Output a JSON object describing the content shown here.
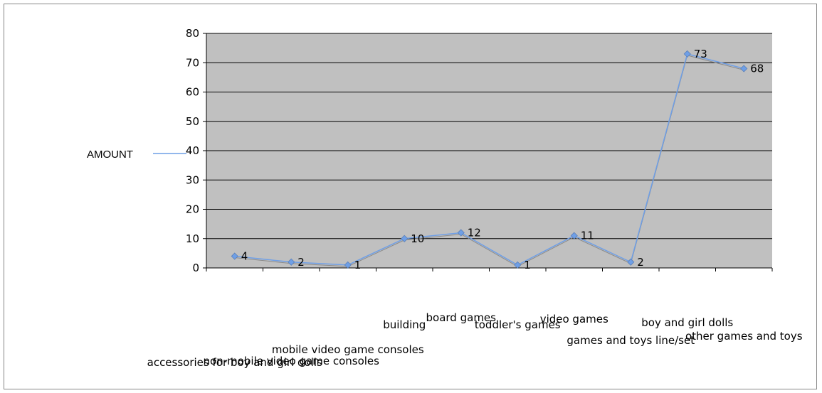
{
  "chart_data": {
    "type": "line",
    "title": "",
    "xlabel": "",
    "ylabel": "",
    "categories": [
      "accessories for boy and girl dolls",
      "non-mobile video game consoles",
      "mobile video game consoles",
      "building",
      "board games",
      "toddler's games",
      "video games",
      "games and toys line/set",
      "boy and girl dolls",
      "other games and toys"
    ],
    "series": [
      {
        "name": "AMOUNT",
        "values": [
          4,
          2,
          1,
          10,
          12,
          1,
          11,
          2,
          73,
          68
        ],
        "color": "#6f9fe6"
      }
    ],
    "data_labels": [
      "4",
      "2",
      "1",
      "10",
      "12",
      "1",
      "11",
      "2",
      "73",
      "68"
    ],
    "ylim": [
      0,
      80
    ],
    "yticks": [
      "0",
      "10",
      "20",
      "30",
      "40",
      "50",
      "60",
      "70",
      "80"
    ],
    "grid": true,
    "plot_background": "#c0c0c0",
    "legend_position": "left"
  }
}
